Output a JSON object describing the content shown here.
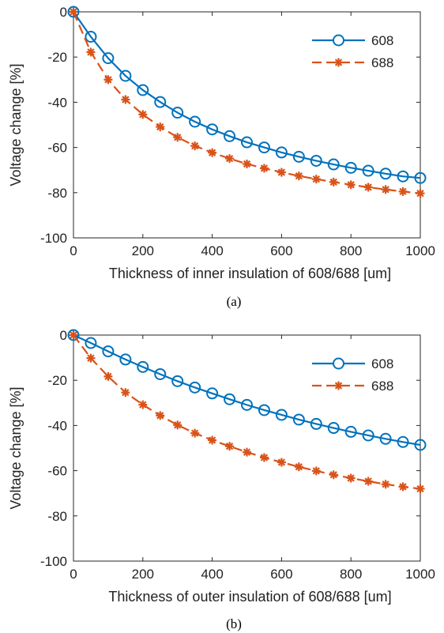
{
  "chart_data": [
    {
      "type": "line",
      "caption": "(a)",
      "xlabel": "Thickness of inner insulation of 608/688 [um]",
      "ylabel": "Voltage change [%]",
      "xlim": [
        0,
        1000
      ],
      "ylim": [
        -100,
        0
      ],
      "xticks": [
        "0",
        "200",
        "400",
        "600",
        "800",
        "1000"
      ],
      "yticks": [
        "0",
        "-20",
        "-40",
        "-60",
        "-80",
        "-100"
      ],
      "grid": false,
      "legend": "top-right",
      "x": [
        0,
        50,
        100,
        150,
        200,
        250,
        300,
        350,
        400,
        450,
        500,
        550,
        600,
        650,
        700,
        750,
        800,
        850,
        900,
        950,
        1000
      ],
      "series": [
        {
          "name": "608",
          "color": "#0072BD",
          "marker": "circle",
          "line": "solid",
          "values": [
            0,
            -11,
            -20.5,
            -28.3,
            -34.6,
            -39.9,
            -44.6,
            -48.6,
            -52.0,
            -55.0,
            -57.7,
            -60.0,
            -62.2,
            -64.1,
            -65.9,
            -67.5,
            -69.0,
            -70.3,
            -71.6,
            -72.8,
            -73.5
          ]
        },
        {
          "name": "688",
          "color": "#D95319",
          "marker": "asterisk",
          "line": "dashed",
          "values": [
            0,
            -17.8,
            -30.0,
            -38.8,
            -45.4,
            -50.9,
            -55.5,
            -59.3,
            -62.3,
            -64.9,
            -67.3,
            -69.2,
            -71.0,
            -72.6,
            -74.0,
            -75.3,
            -76.5,
            -77.6,
            -78.6,
            -79.5,
            -80.3
          ]
        }
      ]
    },
    {
      "type": "line",
      "caption": "(b)",
      "xlabel": "Thickness of outer insulation of 608/688 [um]",
      "ylabel": "Voltage change [%]",
      "xlim": [
        0,
        1000
      ],
      "ylim": [
        -100,
        0
      ],
      "xticks": [
        "0",
        "200",
        "400",
        "600",
        "800",
        "1000"
      ],
      "yticks": [
        "0",
        "-20",
        "-40",
        "-60",
        "-80",
        "-100"
      ],
      "grid": false,
      "legend": "top-right",
      "x": [
        0,
        50,
        100,
        150,
        200,
        250,
        300,
        350,
        400,
        450,
        500,
        550,
        600,
        650,
        700,
        750,
        800,
        850,
        900,
        950,
        1000
      ],
      "series": [
        {
          "name": "608",
          "color": "#0072BD",
          "marker": "circle",
          "line": "solid",
          "values": [
            0,
            -3.5,
            -7.2,
            -10.8,
            -14.1,
            -17.3,
            -20.4,
            -23.2,
            -25.8,
            -28.4,
            -30.9,
            -33.2,
            -35.3,
            -37.4,
            -39.3,
            -41.1,
            -42.8,
            -44.4,
            -45.9,
            -47.3,
            -48.6
          ]
        },
        {
          "name": "688",
          "color": "#D95319",
          "marker": "asterisk",
          "line": "dashed",
          "values": [
            0,
            -10.2,
            -18.3,
            -25.4,
            -30.8,
            -35.6,
            -39.8,
            -43.4,
            -46.5,
            -49.2,
            -51.8,
            -54.2,
            -56.3,
            -58.3,
            -60.1,
            -61.8,
            -63.3,
            -64.7,
            -66.0,
            -67.1,
            -68.0
          ]
        }
      ]
    }
  ]
}
